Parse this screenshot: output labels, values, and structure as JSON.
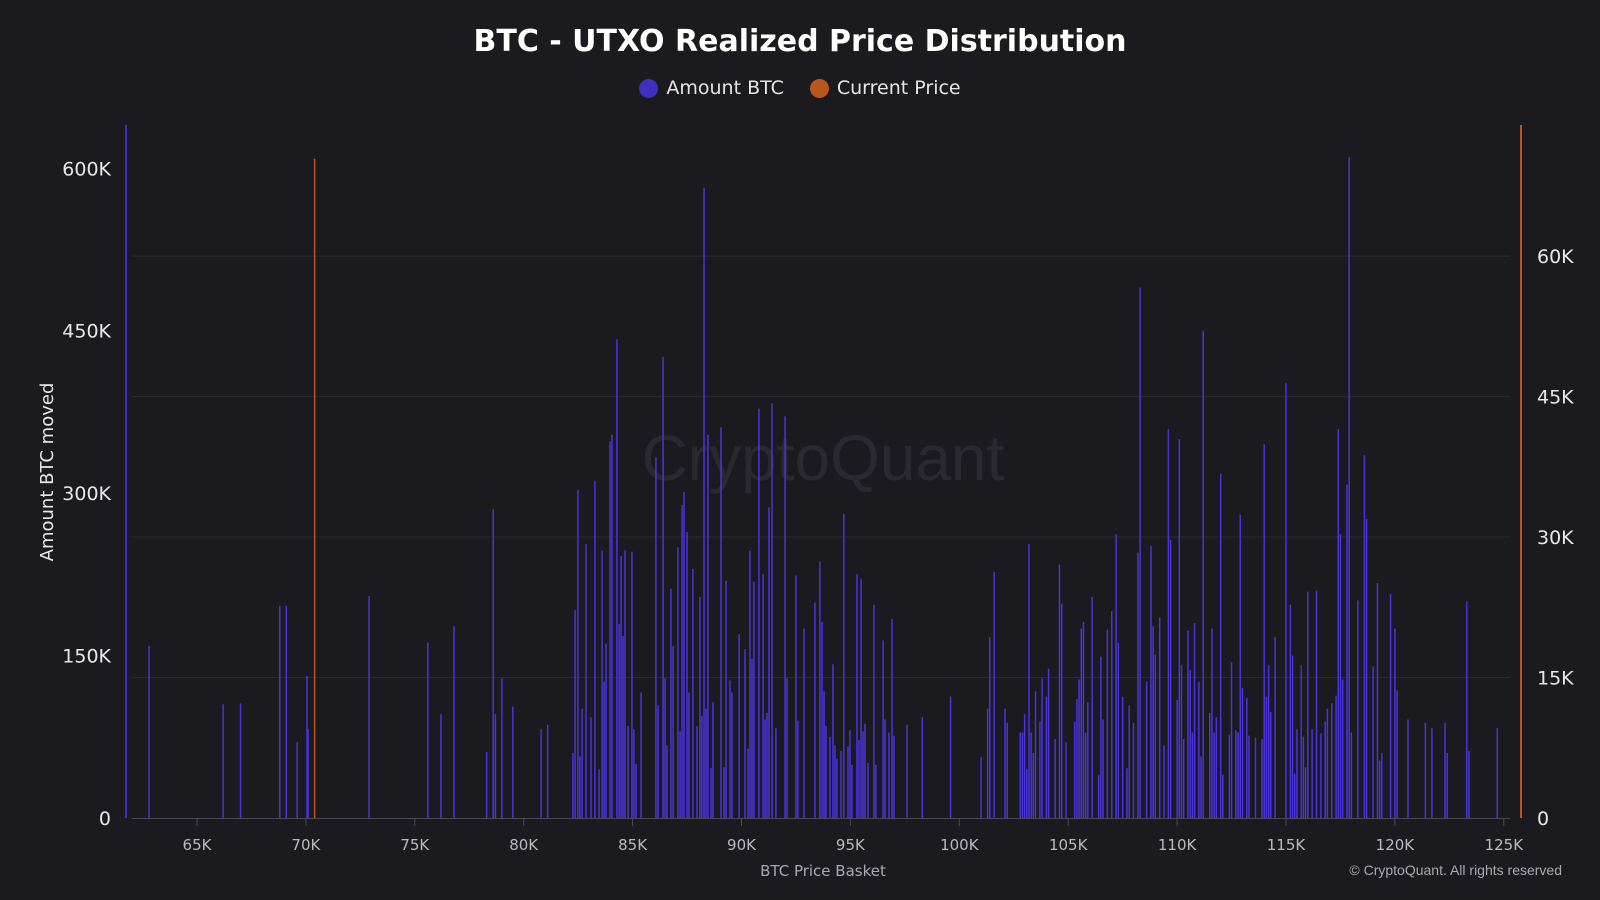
{
  "chart_data": {
    "type": "bar",
    "title": "BTC - UTXO Realized Price Distribution",
    "xlabel": "BTC Price Basket",
    "ylabel": "Amount BTC moved",
    "y2label": "",
    "watermark": "CryptoQuant",
    "copyright": "© CryptoQuant. All rights reserved",
    "legend_position": "top-center",
    "grid": true,
    "xlim": [
      61.7,
      125.6
    ],
    "ylim": [
      0,
      640
    ],
    "y2lim": [
      0,
      74
    ],
    "x_unit": "K USD",
    "y_unit": "K BTC",
    "x_ticks": [
      "65K",
      "70K",
      "75K",
      "80K",
      "85K",
      "90K",
      "95K",
      "100K",
      "105K",
      "110K",
      "115K",
      "120K",
      "125K"
    ],
    "x_tick_values": [
      65,
      70,
      75,
      80,
      85,
      90,
      95,
      100,
      105,
      110,
      115,
      120,
      125
    ],
    "y_ticks": [
      "0",
      "150K",
      "300K",
      "450K",
      "600K"
    ],
    "y_tick_values": [
      0,
      150,
      300,
      450,
      600
    ],
    "y2_ticks": [
      "0",
      "15K",
      "30K",
      "45K",
      "60K"
    ],
    "y2_tick_values": [
      0,
      15,
      30,
      45,
      60
    ],
    "series": [
      {
        "name": "Amount BTC",
        "axis": "left",
        "color": "#4a33d9",
        "x": [
          62.8,
          66.2,
          67.0,
          68.8,
          69.1,
          69.6,
          70.05,
          70.1,
          72.9,
          75.6,
          76.2,
          76.8,
          78.3,
          78.6,
          78.7,
          79.0,
          79.5,
          80.8,
          81.1,
          82.26,
          82.36,
          82.49,
          82.58,
          82.68,
          82.86,
          83.09,
          83.27,
          83.46,
          83.6,
          83.69,
          83.78,
          83.96,
          84.05,
          84.28,
          84.38,
          84.47,
          84.56,
          84.65,
          84.79,
          84.97,
          85.06,
          85.16,
          85.39,
          86.07,
          86.17,
          86.4,
          86.49,
          86.58,
          86.76,
          86.86,
          87.08,
          87.18,
          87.27,
          87.36,
          87.5,
          87.59,
          87.77,
          87.96,
          88.09,
          88.18,
          88.28,
          88.37,
          88.46,
          88.6,
          88.69,
          89.06,
          89.2,
          89.29,
          89.47,
          89.56,
          89.89,
          90.16,
          90.3,
          90.39,
          90.48,
          90.57,
          90.8,
          90.99,
          91.08,
          91.17,
          91.26,
          91.4,
          91.58,
          92.0,
          92.09,
          92.5,
          92.59,
          92.87,
          93.37,
          93.6,
          93.7,
          93.79,
          93.88,
          94.06,
          94.2,
          94.29,
          94.38,
          94.57,
          94.7,
          94.89,
          94.98,
          95.07,
          95.3,
          95.39,
          95.49,
          95.58,
          95.67,
          95.81,
          96.08,
          96.17,
          96.5,
          96.59,
          96.77,
          96.91,
          97.0,
          97.6,
          98.3,
          99.6,
          101.0,
          101.3,
          101.4,
          101.6,
          102.1,
          102.2,
          102.8,
          102.9,
          103.0,
          103.1,
          103.2,
          103.3,
          103.4,
          103.5,
          103.7,
          103.8,
          104.0,
          104.1,
          104.4,
          104.6,
          104.7,
          104.9,
          105.3,
          105.4,
          105.5,
          105.6,
          105.7,
          105.8,
          105.9,
          106.1,
          106.4,
          106.5,
          106.6,
          106.8,
          107.0,
          107.2,
          107.3,
          107.5,
          107.7,
          107.8,
          108.0,
          108.2,
          108.3,
          108.6,
          108.8,
          108.9,
          109.0,
          109.2,
          109.4,
          109.6,
          109.7,
          110.0,
          110.1,
          110.2,
          110.3,
          110.5,
          110.6,
          110.7,
          110.8,
          111.0,
          111.1,
          111.2,
          111.5,
          111.6,
          111.7,
          111.8,
          112.0,
          112.1,
          112.4,
          112.5,
          112.7,
          112.8,
          112.9,
          113.0,
          113.2,
          113.3,
          113.6,
          113.9,
          114.0,
          114.1,
          114.2,
          114.3,
          114.5,
          115.0,
          115.2,
          115.3,
          115.4,
          115.5,
          115.7,
          115.8,
          115.9,
          116.0,
          116.2,
          116.4,
          116.6,
          116.8,
          116.9,
          117.1,
          117.3,
          117.4,
          117.5,
          117.6,
          117.8,
          117.9,
          118.0,
          118.3,
          118.6,
          118.7,
          119.0,
          119.2,
          119.3,
          119.4,
          119.8,
          120.0,
          120.1,
          120.6,
          121.4,
          121.7,
          122.3,
          122.4,
          123.3,
          123.4,
          124.7
        ],
        "values": [
          159,
          105,
          106,
          196,
          196,
          70,
          131,
          82,
          205,
          162,
          96,
          177,
          61,
          285,
          96,
          129,
          103,
          82,
          86,
          60,
          192,
          303,
          57,
          101,
          253,
          93,
          311,
          45,
          247,
          126,
          161,
          348,
          354,
          442,
          179,
          242,
          168,
          247,
          85,
          246,
          82,
          50,
          116,
          333,
          104,
          426,
          129,
          67,
          212,
          159,
          250,
          80,
          289,
          301,
          264,
          116,
          230,
          85,
          204,
          94,
          582,
          101,
          354,
          46,
          107,
          361,
          47,
          219,
          127,
          116,
          170,
          156,
          64,
          247,
          147,
          218,
          378,
          225,
          91,
          97,
          287,
          383,
          83,
          371,
          129,
          224,
          90,
          175,
          199,
          237,
          181,
          117,
          85,
          75,
          142,
          67,
          55,
          62,
          281,
          66,
          81,
          49,
          225,
          72,
          221,
          80,
          87,
          51,
          197,
          49,
          164,
          91,
          79,
          184,
          76,
          86,
          93,
          112,
          56,
          101,
          167,
          227,
          101,
          88,
          79,
          79,
          96,
          45,
          253,
          79,
          60,
          117,
          89,
          129,
          112,
          138,
          73,
          234,
          198,
          70,
          89,
          110,
          128,
          175,
          181,
          79,
          107,
          204,
          40,
          149,
          91,
          174,
          191,
          262,
          162,
          112,
          46,
          104,
          88,
          245,
          490,
          126,
          251,
          177,
          151,
          185,
          67,
          359,
          257,
          109,
          350,
          141,
          73,
          173,
          137,
          79,
          180,
          126,
          57,
          450,
          97,
          175,
          79,
          93,
          318,
          40,
          77,
          144,
          81,
          79,
          280,
          120,
          111,
          76,
          74,
          73,
          345,
          112,
          141,
          98,
          167,
          402,
          197,
          150,
          41,
          82,
          141,
          75,
          47,
          209,
          82,
          210,
          78,
          89,
          101,
          106,
          113,
          359,
          262,
          128,
          308,
          610,
          79,
          201,
          335,
          276,
          140,
          217,
          53,
          60,
          207,
          175,
          118,
          91,
          88,
          83,
          88,
          60,
          200,
          62,
          83
        ]
      },
      {
        "name": "Current Price",
        "axis": "right",
        "color": "#b8561c",
        "x": [
          70.4
        ],
        "values": [
          70.4
        ]
      }
    ]
  }
}
